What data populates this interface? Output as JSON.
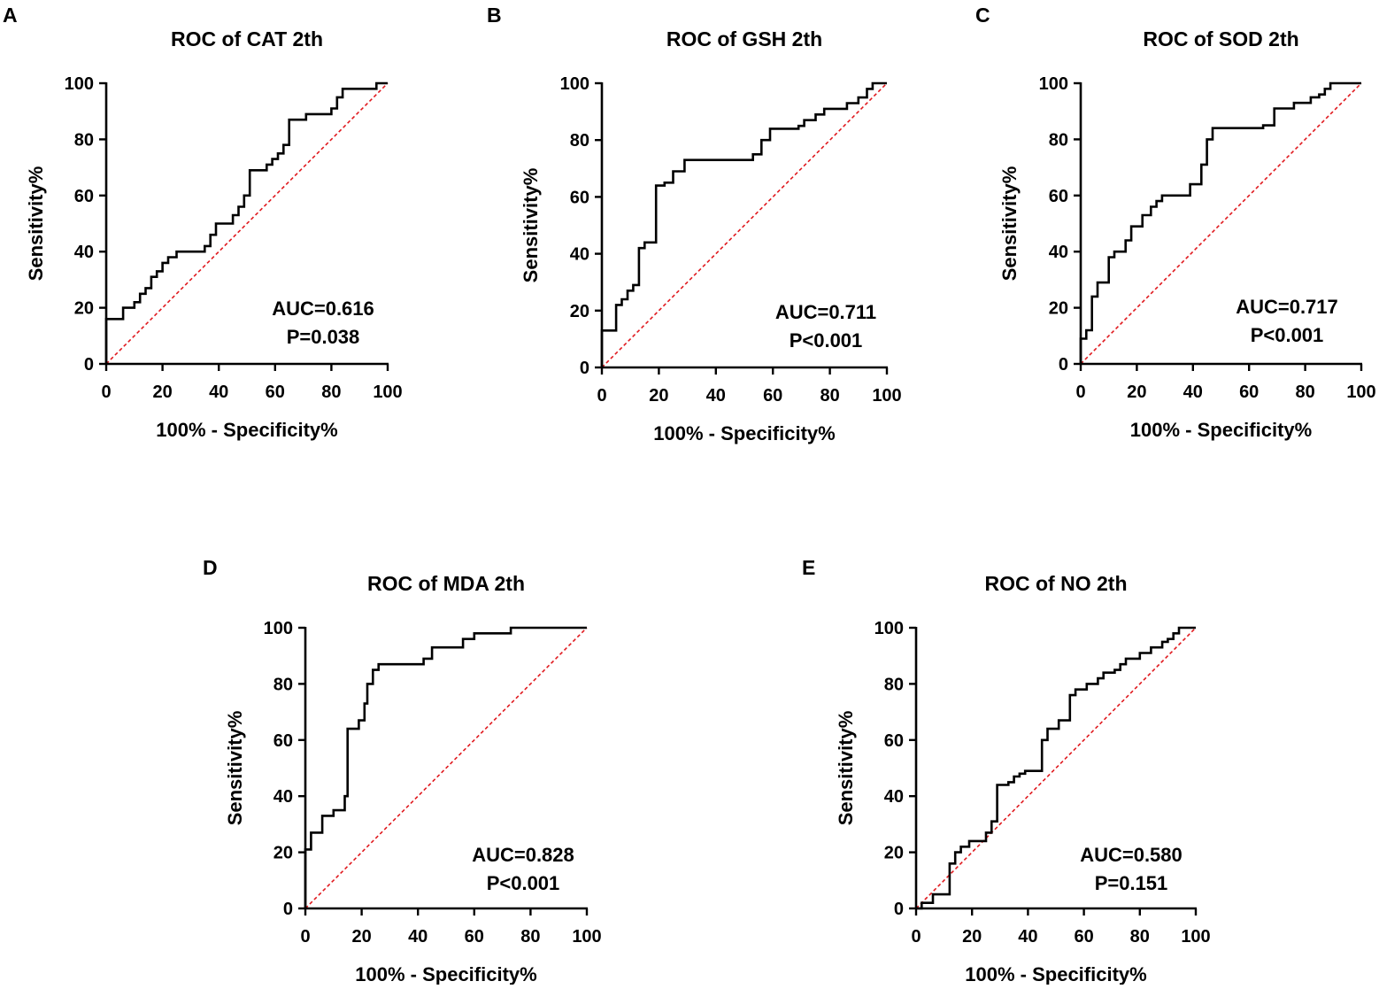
{
  "colors": {
    "curve": "#000000",
    "reference": "#e0191e",
    "axis": "#000000"
  },
  "chart_data": [
    {
      "letter": "A",
      "type": "line",
      "title": "ROC of CAT 2th",
      "xlabel": "100% - Specificity%",
      "ylabel": "Sensitivity%",
      "xlim": [
        0,
        100
      ],
      "ylim": [
        0,
        100
      ],
      "ticks": [
        "0",
        "20",
        "40",
        "60",
        "80",
        "100"
      ],
      "auc": "AUC=0.616",
      "p": "P=0.038",
      "x": [
        0,
        0,
        6,
        6,
        10,
        10,
        12,
        12,
        14,
        14,
        16,
        16,
        18,
        18,
        20,
        20,
        22,
        22,
        25,
        25,
        35,
        35,
        37,
        37,
        39,
        39,
        45,
        45,
        47,
        47,
        49,
        49,
        51,
        51,
        57,
        57,
        59,
        59,
        61,
        61,
        63,
        63,
        65,
        65,
        67,
        67,
        71,
        71,
        80,
        80,
        82,
        82,
        84,
        84,
        96,
        96,
        100
      ],
      "y": [
        0,
        16,
        16,
        20,
        20,
        22,
        22,
        25,
        25,
        27,
        27,
        31,
        31,
        33,
        33,
        36,
        36,
        38,
        38,
        40,
        40,
        42,
        42,
        46,
        46,
        50,
        50,
        53,
        53,
        56,
        56,
        60,
        60,
        69,
        69,
        71,
        71,
        73,
        73,
        75,
        75,
        78,
        78,
        87,
        87,
        87,
        87,
        89,
        89,
        91,
        91,
        95,
        95,
        98,
        98,
        100,
        100
      ]
    },
    {
      "letter": "B",
      "type": "line",
      "title": "ROC of GSH 2th",
      "xlabel": "100% - Specificity%",
      "ylabel": "Sensitivity%",
      "xlim": [
        0,
        100
      ],
      "ylim": [
        0,
        100
      ],
      "ticks": [
        "0",
        "20",
        "40",
        "60",
        "80",
        "100"
      ],
      "auc": "AUC=0.711",
      "p": "P<0.001",
      "x": [
        0,
        0,
        5,
        5,
        7,
        7,
        9,
        9,
        11,
        11,
        13,
        13,
        15,
        15,
        19,
        19,
        22,
        22,
        25,
        25,
        29,
        29,
        53,
        53,
        56,
        56,
        59,
        59,
        69,
        69,
        71,
        71,
        75,
        75,
        78,
        78,
        86,
        86,
        90,
        90,
        93,
        93,
        95,
        95,
        100
      ],
      "y": [
        0,
        13,
        13,
        22,
        22,
        24,
        24,
        27,
        27,
        29,
        29,
        42,
        42,
        44,
        44,
        64,
        64,
        65,
        65,
        69,
        69,
        73,
        73,
        75,
        75,
        80,
        80,
        84,
        84,
        85,
        85,
        87,
        87,
        89,
        89,
        91,
        91,
        93,
        93,
        95,
        95,
        98,
        98,
        100,
        100
      ]
    },
    {
      "letter": "C",
      "type": "line",
      "title": "ROC of SOD 2th",
      "xlabel": "100% - Specificity%",
      "ylabel": "Sensitivity%",
      "xlim": [
        0,
        100
      ],
      "ylim": [
        0,
        100
      ],
      "ticks": [
        "0",
        "20",
        "40",
        "60",
        "80",
        "100"
      ],
      "auc": "AUC=0.717",
      "p": "P<0.001",
      "x": [
        0,
        0,
        2,
        2,
        4,
        4,
        6,
        6,
        10,
        10,
        12,
        12,
        16,
        16,
        18,
        18,
        22,
        22,
        25,
        25,
        27,
        27,
        29,
        29,
        31,
        31,
        39,
        39,
        43,
        43,
        45,
        45,
        47,
        47,
        65,
        65,
        69,
        69,
        76,
        76,
        82,
        82,
        85,
        85,
        87,
        87,
        89,
        89,
        91,
        91,
        100
      ],
      "y": [
        0,
        9,
        9,
        12,
        12,
        24,
        24,
        29,
        29,
        38,
        38,
        40,
        40,
        44,
        44,
        49,
        49,
        53,
        53,
        56,
        56,
        58,
        58,
        60,
        60,
        60,
        60,
        64,
        64,
        71,
        71,
        80,
        80,
        84,
        84,
        85,
        85,
        91,
        91,
        93,
        93,
        95,
        95,
        96,
        96,
        98,
        98,
        100,
        100,
        100,
        100
      ]
    },
    {
      "letter": "D",
      "type": "line",
      "title": "ROC of MDA 2th",
      "xlabel": "100% - Specificity%",
      "ylabel": "Sensitivity%",
      "xlim": [
        0,
        100
      ],
      "ylim": [
        0,
        100
      ],
      "ticks": [
        "0",
        "20",
        "40",
        "60",
        "80",
        "100"
      ],
      "auc": "AUC=0.828",
      "p": "P<0.001",
      "x": [
        0,
        0,
        2,
        2,
        6,
        6,
        10,
        10,
        14,
        14,
        15,
        15,
        19,
        19,
        21,
        21,
        22,
        22,
        24,
        24,
        26,
        26,
        30,
        30,
        42,
        42,
        45,
        45,
        47,
        47,
        56,
        56,
        60,
        60,
        73,
        73,
        100
      ],
      "y": [
        0,
        21,
        21,
        27,
        27,
        33,
        33,
        35,
        35,
        40,
        40,
        64,
        64,
        67,
        67,
        73,
        73,
        80,
        80,
        85,
        85,
        87,
        87,
        87,
        87,
        89,
        89,
        93,
        93,
        93,
        93,
        96,
        96,
        98,
        98,
        100,
        100
      ]
    },
    {
      "letter": "E",
      "type": "line",
      "title": "ROC of NO 2th",
      "xlabel": "100% - Specificity%",
      "ylabel": "Sensitivity%",
      "xlim": [
        0,
        100
      ],
      "ylim": [
        0,
        100
      ],
      "ticks": [
        "0",
        "20",
        "40",
        "60",
        "80",
        "100"
      ],
      "auc": "AUC=0.580",
      "p": "P=0.151",
      "x": [
        0,
        2,
        2,
        6,
        6,
        12,
        12,
        14,
        14,
        16,
        16,
        19,
        19,
        25,
        25,
        27,
        27,
        29,
        29,
        33,
        33,
        35,
        35,
        37,
        37,
        39,
        39,
        41,
        41,
        45,
        45,
        47,
        47,
        49,
        49,
        51,
        51,
        55,
        55,
        57,
        57,
        61,
        61,
        65,
        65,
        67,
        67,
        71,
        71,
        73,
        73,
        75,
        75,
        80,
        80,
        84,
        84,
        88,
        88,
        90,
        90,
        92,
        92,
        94,
        94,
        100
      ],
      "y": [
        0,
        0,
        2,
        2,
        5,
        5,
        16,
        16,
        20,
        20,
        22,
        22,
        24,
        24,
        27,
        27,
        31,
        31,
        44,
        44,
        45,
        45,
        47,
        47,
        48,
        48,
        49,
        49,
        49,
        49,
        60,
        60,
        64,
        64,
        64,
        64,
        67,
        67,
        76,
        76,
        78,
        78,
        80,
        80,
        82,
        82,
        84,
        84,
        85,
        85,
        87,
        87,
        89,
        89,
        91,
        91,
        93,
        93,
        95,
        95,
        96,
        96,
        98,
        98,
        100,
        100
      ]
    }
  ]
}
